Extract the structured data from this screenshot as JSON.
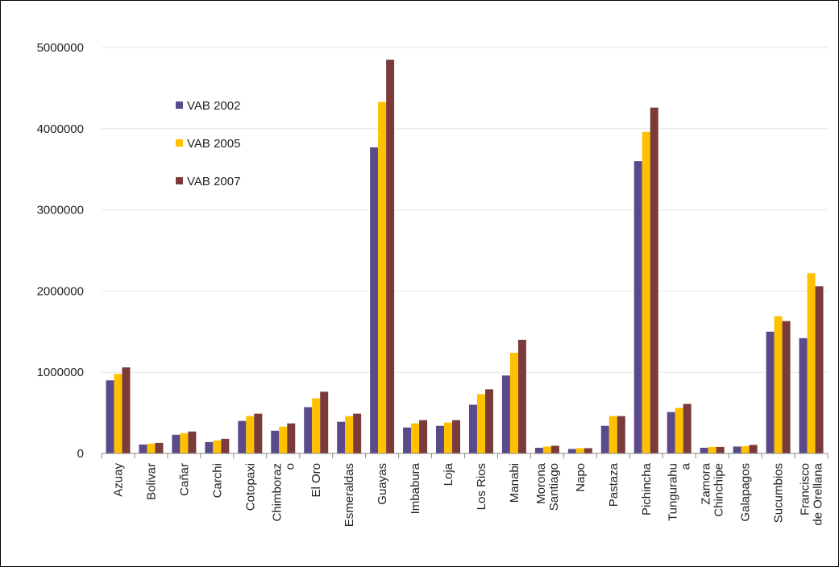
{
  "chart_data": {
    "type": "bar",
    "title": "",
    "xlabel": "",
    "ylabel": "",
    "ylim": [
      0,
      5000000
    ],
    "yticks": [
      "0",
      "1000000",
      "2000000",
      "3000000",
      "4000000",
      "5000000"
    ],
    "grid": true,
    "legend_position": "top-left inside plot",
    "categories": [
      [
        "Azuay"
      ],
      [
        "Bolivar"
      ],
      [
        "Cañar"
      ],
      [
        "Carchi"
      ],
      [
        "Cotopaxi"
      ],
      [
        "Chimboraz",
        "o"
      ],
      [
        "El Oro"
      ],
      [
        "Esmeraldas"
      ],
      [
        "Guayas"
      ],
      [
        "Imbabura"
      ],
      [
        "Loja"
      ],
      [
        "Los Rios"
      ],
      [
        "Manabi"
      ],
      [
        "Morona",
        "Santiago"
      ],
      [
        "Napo"
      ],
      [
        "Pastaza"
      ],
      [
        "Pichincha"
      ],
      [
        "Tungurahu",
        "a"
      ],
      [
        "Zamora",
        "Chinchipe"
      ],
      [
        "Galapagos"
      ],
      [
        "Sucumbios"
      ],
      [
        "Francisco",
        "de Orellana"
      ]
    ],
    "series": [
      {
        "name": "VAB 2002",
        "color": "#5B4A8B",
        "values": [
          900000,
          110000,
          230000,
          140000,
          400000,
          280000,
          570000,
          390000,
          3770000,
          320000,
          340000,
          600000,
          960000,
          70000,
          55000,
          340000,
          3600000,
          510000,
          70000,
          85000,
          1500000,
          1420000
        ]
      },
      {
        "name": "VAB 2005",
        "color": "#FFC000",
        "values": [
          980000,
          120000,
          250000,
          160000,
          460000,
          330000,
          680000,
          460000,
          4330000,
          370000,
          380000,
          730000,
          1240000,
          85000,
          65000,
          460000,
          3960000,
          560000,
          80000,
          90000,
          1690000,
          2220000
        ]
      },
      {
        "name": "VAB 2007",
        "color": "#7B3B3B",
        "values": [
          1060000,
          130000,
          270000,
          180000,
          490000,
          370000,
          760000,
          490000,
          4850000,
          410000,
          410000,
          790000,
          1400000,
          95000,
          65000,
          460000,
          4260000,
          610000,
          80000,
          105000,
          1630000,
          2060000
        ]
      }
    ]
  }
}
